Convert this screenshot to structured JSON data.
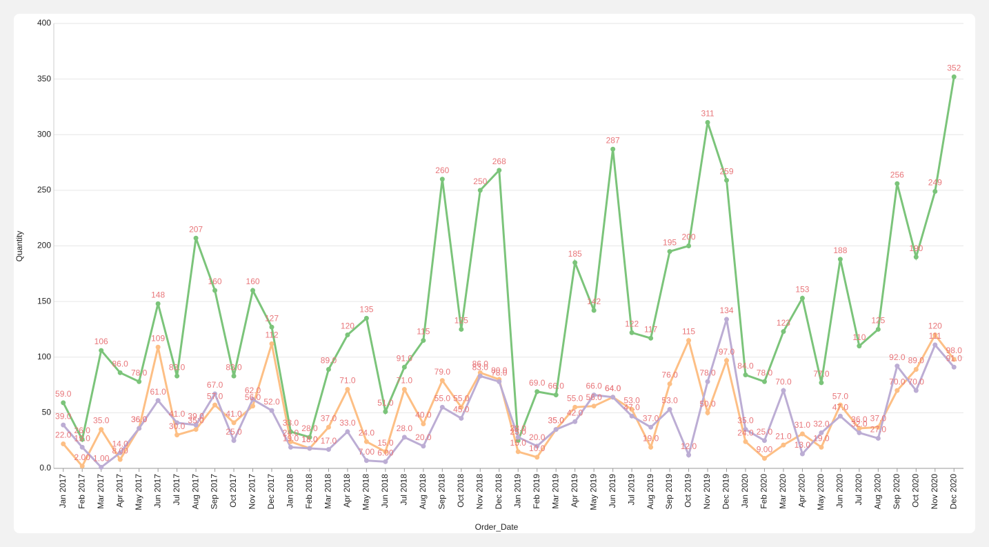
{
  "chart_data": {
    "type": "line",
    "x_label": "Order_Date",
    "y_label": "Quantity",
    "categories": [
      "Jan 2017",
      "Feb 2017",
      "Mar 2017",
      "Apr 2017",
      "May 2017",
      "Jun 2017",
      "Jul 2017",
      "Aug 2017",
      "Sep 2017",
      "Oct 2017",
      "Nov 2017",
      "Dec 2017",
      "Jan 2018",
      "Feb 2018",
      "Mar 2018",
      "Apr 2018",
      "May 2018",
      "Jun 2018",
      "Jul 2018",
      "Aug 2018",
      "Sep 2018",
      "Oct 2018",
      "Nov 2018",
      "Dec 2018",
      "Jan 2019",
      "Feb 2019",
      "Mar 2019",
      "Apr 2019",
      "May 2019",
      "Jun 2019",
      "Jul 2019",
      "Aug 2019",
      "Sep 2019",
      "Oct 2019",
      "Nov 2019",
      "Dec 2019",
      "Jan 2020",
      "Feb 2020",
      "Mar 2020",
      "Apr 2020",
      "May 2020",
      "Jun 2020",
      "Jul 2020",
      "Aug 2020",
      "Sep 2020",
      "Oct 2020",
      "Nov 2020",
      "Dec 2020"
    ],
    "series": [
      {
        "color": "#7bc47a",
        "values": [
          59,
          26,
          106,
          86,
          78,
          148,
          83,
          207,
          160,
          83,
          160,
          127,
          33,
          28,
          89,
          120,
          135,
          51,
          91,
          115,
          260,
          125,
          250,
          268,
          25,
          69,
          66,
          185,
          142,
          287,
          122,
          117,
          195,
          200,
          311,
          259,
          84,
          78,
          123,
          153,
          77,
          188,
          110,
          125,
          256,
          190,
          249,
          352
        ],
        "value_labels": [
          "59.0",
          "26.0",
          "106",
          "86.0",
          "78.0",
          "148",
          "83.0",
          "207",
          "160",
          "83.0",
          "160",
          "127",
          "33.0",
          "28.0",
          "89.0",
          "120",
          "135",
          "51.0",
          "91.0",
          "115",
          "260",
          "125",
          "250",
          "268",
          "25.0",
          "69.0",
          "66.0",
          "185",
          "142",
          "287",
          "122",
          "117",
          "195",
          "200",
          "311",
          "259",
          "84.0",
          "78.0",
          "123",
          "153",
          "77.0",
          "188",
          "110",
          "125",
          "256",
          "190",
          "249",
          "352"
        ]
      },
      {
        "color": "#fdbf85",
        "values": [
          22,
          2,
          35,
          8,
          36,
          109,
          30,
          35,
          57,
          41,
          56,
          112,
          24,
          18,
          37,
          71,
          24,
          15,
          71,
          40,
          79,
          55,
          86,
          80,
          15,
          10,
          35,
          55,
          56,
          64,
          53,
          19,
          76,
          115,
          50,
          97,
          24,
          9,
          21,
          31,
          19,
          57,
          36,
          37,
          70,
          89,
          120,
          98
        ],
        "value_labels": [
          "22.0",
          "2.00",
          "35.0",
          "8.00",
          "36.0",
          "109",
          "30.0",
          "35.0",
          "57.0",
          "41.0",
          "56.0",
          "112",
          "24.0",
          "18.0",
          "37.0",
          "71.0",
          "24.0",
          "15.0",
          "71.0",
          "40.0",
          "79.0",
          "55.0",
          "86.0",
          "80.0",
          "15.0",
          "10.0",
          "35.0",
          "55.0",
          "56.0",
          "64.0",
          "53.0",
          "19.0",
          "76.0",
          "115",
          "50.0",
          "97.0",
          "24.0",
          "9.00",
          "21.0",
          "31.0",
          "19.0",
          "57.0",
          "36.0",
          "37.0",
          "70.0",
          "89.0",
          "120",
          "98.0"
        ]
      },
      {
        "color": "#bcadd4",
        "values": [
          39,
          19,
          1,
          14,
          36,
          61,
          41,
          39,
          67,
          25,
          62,
          52,
          19,
          18,
          17,
          33,
          7,
          6,
          28,
          20,
          55,
          45,
          83,
          78,
          28,
          20,
          35,
          42,
          66,
          64,
          47,
          37,
          53,
          12,
          78,
          134,
          35,
          25,
          70,
          13,
          32,
          47,
          32,
          27,
          92,
          70,
          111,
          91
        ],
        "value_labels": [
          "39.0",
          "19.0",
          "1.00",
          "14.0",
          "36.0",
          "61.0",
          "41.0",
          "39.0",
          "67.0",
          "25.0",
          "62.0",
          "52.0",
          "19.0",
          "18.0",
          "17.0",
          "33.0",
          "7.00",
          "6.00",
          "28.0",
          "20.0",
          "55.0",
          "45.0",
          "83.0",
          "78.0",
          "28.0",
          "20.0",
          "35.0",
          "42.0",
          "66.0",
          "64.0",
          "47.0",
          "37.0",
          "53.0",
          "12.0",
          "78.0",
          "134",
          "35.0",
          "25.0",
          "70.0",
          "13.0",
          "32.0",
          "47.0",
          "32.0",
          "27.0",
          "92.0",
          "70.0",
          "111",
          "91.0"
        ]
      }
    ],
    "label_color": "#e8767a",
    "ylim": [
      0,
      400
    ],
    "yticks": [
      {
        "value": 0,
        "label": "0.0"
      },
      50,
      100,
      150,
      200,
      250,
      300,
      350,
      400
    ],
    "grid": true
  }
}
